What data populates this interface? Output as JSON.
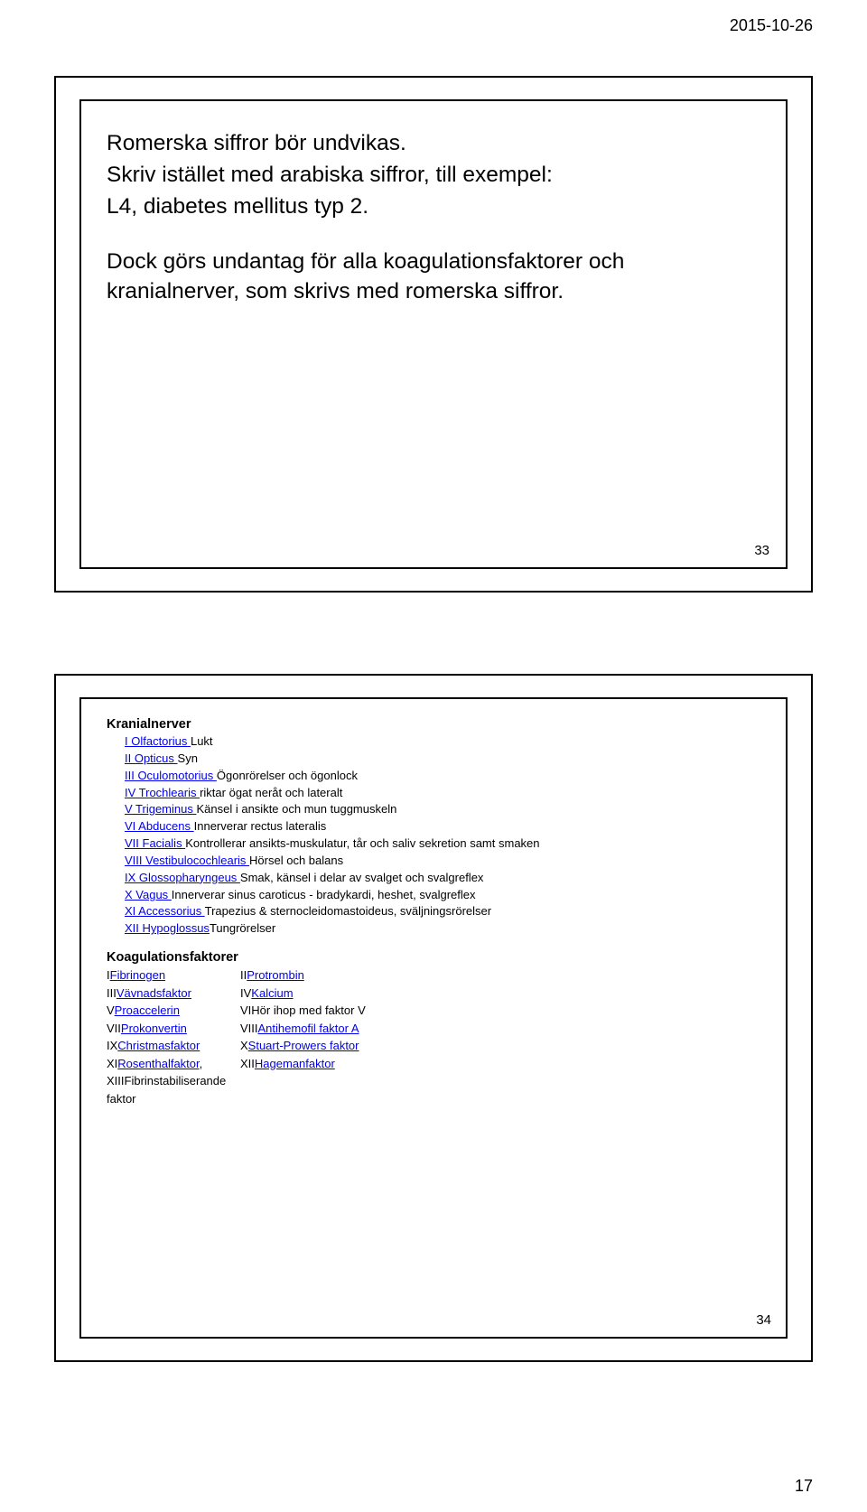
{
  "header": {
    "date": "2015-10-26"
  },
  "page_number": "17",
  "slide1": {
    "p1": "Romerska siffror bör undvikas.",
    "p2": "Skriv istället med arabiska siffror, till exempel:",
    "p3": "L4, diabetes mellitus typ 2.",
    "p4": "Dock görs undantag för alla koagulationsfaktorer och kranialnerver, som skrivs med romerska siffror.",
    "num": "33"
  },
  "slide2": {
    "num": "34",
    "cranial_heading": "Kranialnerver",
    "cranial": [
      {
        "link": "I Olfactorius ",
        "desc": "Lukt"
      },
      {
        "link": "II Opticus ",
        "desc": "Syn"
      },
      {
        "link": "III Oculomotorius ",
        "desc": "Ögonrörelser och ögonlock"
      },
      {
        "link": "IV Trochlearis ",
        "desc": " riktar ögat neråt och lateralt"
      },
      {
        "link": "V Trigeminus ",
        "desc": "Känsel i ansikte och mun tuggmuskeln"
      },
      {
        "link": "VI Abducens ",
        "desc": "Innerverar rectus lateralis"
      },
      {
        "link": "VII Facialis ",
        "desc": "Kontrollerar ansikts-muskulatur, tår och saliv sekretion samt smaken"
      },
      {
        "link": "VIII Vestibulocochlearis ",
        "desc": "Hörsel och balans"
      },
      {
        "link": "IX Glossopharyngeus ",
        "desc": "Smak, känsel i delar av svalget och svalgreflex"
      },
      {
        "link": "X Vagus ",
        "desc": "Innerverar sinus caroticus - bradykardi, heshet, svalgreflex"
      },
      {
        "link": "XI Accessorius ",
        "desc": "Trapezius & sternocleidomastoideus, sväljningsrörelser"
      },
      {
        "link": "XII Hypoglossus",
        "desc": "Tungrörelser"
      }
    ],
    "coag_heading": "Koagulationsfaktorer",
    "coag": [
      {
        "l": {
          "pre": "I",
          "link": "Fibrinogen"
        },
        "r": {
          "pre": "II",
          "link": "Protrombin"
        }
      },
      {
        "l": {
          "pre": "III",
          "link": "Vävnadsfaktor"
        },
        "r": {
          "pre": "IV",
          "link": "Kalcium"
        }
      },
      {
        "l": {
          "pre": "V",
          "link": "Proaccelerin"
        },
        "r": {
          "pre": "VI",
          "plain": "Hör ihop med faktor V"
        }
      },
      {
        "l": {
          "pre": "VII",
          "link": "Prokonvertin"
        },
        "r": {
          "pre": "VIII",
          "link": "Antihemofil faktor A"
        }
      },
      {
        "l": {
          "pre": "IX",
          "link": "Christmasfaktor"
        },
        "r": {
          "pre": "X",
          "link": "Stuart-Prowers faktor"
        }
      },
      {
        "l": {
          "pre": "XI",
          "link": "Rosenthalfaktor",
          "suffix": ","
        },
        "r": {
          "pre": "XII",
          "link": "Hagemanfaktor"
        }
      },
      {
        "l": {
          "pre": "XIII",
          "plain": "Fibrinstabiliserande faktor"
        }
      }
    ]
  }
}
